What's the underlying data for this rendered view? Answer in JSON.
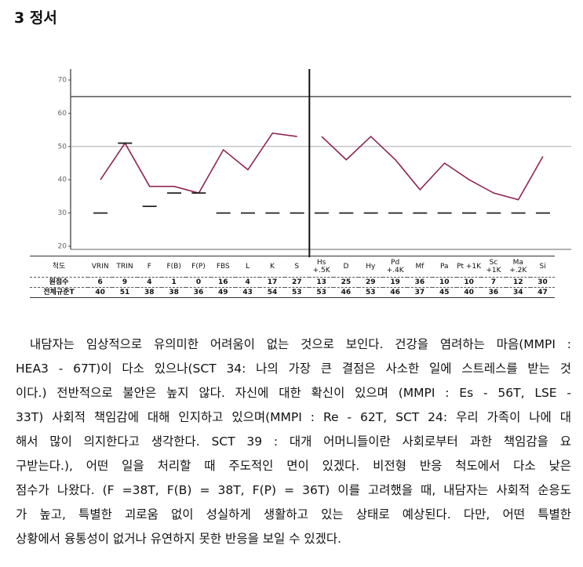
{
  "header": {
    "title": "3 정서"
  },
  "chart_data": [
    {
      "type": "line",
      "categories": [
        "VRIN",
        "TRIN",
        "F",
        "F(B)",
        "F(P)",
        "FBS",
        "L",
        "K",
        "S"
      ],
      "values": [
        40,
        51,
        38,
        38,
        36,
        49,
        43,
        54,
        53
      ],
      "reference_values": [
        30,
        51,
        32,
        36,
        36,
        30,
        30,
        30,
        30
      ],
      "color": "#8e2454",
      "ylim": [
        20,
        70
      ],
      "yticks": [
        20,
        30,
        40,
        50,
        60,
        70
      ],
      "hlines": [
        65,
        50
      ]
    },
    {
      "type": "line",
      "categories": [
        "Hs +.5K",
        "D",
        "Hy",
        "Pd +.4K",
        "Mf",
        "Pa",
        "Pt +1K",
        "Sc +1K",
        "Ma +.2K",
        "Si"
      ],
      "values": [
        53,
        46,
        53,
        46,
        37,
        45,
        40,
        36,
        34,
        47
      ],
      "reference_values": [
        30,
        30,
        30,
        30,
        30,
        30,
        30,
        30,
        30,
        30
      ],
      "color": "#8e2454",
      "ylim": [
        20,
        70
      ]
    }
  ],
  "table": {
    "scale_label": "척도",
    "raw_label": "원점수",
    "t_label": "전체규준T",
    "raw_scores": [
      6,
      9,
      4,
      1,
      0,
      16,
      4,
      17,
      27,
      13,
      25,
      29,
      19,
      36,
      10,
      10,
      7,
      12,
      30
    ]
  },
  "paragraph": {
    "lines": [
      "내담자는 임상적으로 유의미한 어려움이 없는 것으로 보인다. 건강을 염려하는 마음(MMPI :",
      "HEA3 - 67T)이 다소 있으나(SCT 34: 나의 가장 큰 결점은 사소한 일에 스트레스를 받는 것",
      "이다.) 전반적으로 불안은 높지 않다. 자신에 대한 확신이 있으며 (MMPI : Es - 56T, LSE -",
      "33T) 사회적 책임감에 대해 인지하고 있으며(MMPI : Re - 62T, SCT 24: 우리 가족이 나에 대",
      "해서 많이 의지한다고 생각한다. SCT 39 : 대개 어머니들이란 사회로부터 과한 책임감을 요",
      "구받는다.), 어떤 일을 처리할 때 주도적인 면이 있겠다. 비전형 반응 척도에서 다소 낮은",
      "점수가 나왔다. (F =38T, F(B) = 38T, F(P) = 36T) 이를 고려했을 때, 내담자는 사회적 순응도",
      "가 높고, 특별한 괴로움 없이 성실하게 생활하고 있는 상태로 예상된다. 다만, 어떤 특별한",
      "상황에서 융통성이 없거나 유연하지 못한 반응을 보일 수 있겠다."
    ]
  }
}
